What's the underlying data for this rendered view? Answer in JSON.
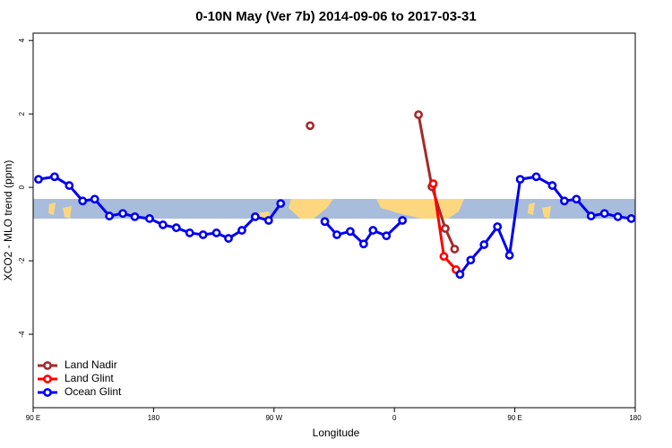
{
  "chart_data": {
    "type": "line",
    "title": "0-10N May (Ver 7b)   2014-09-06 to 2017-03-31",
    "x_label": "Longitude",
    "y_label": "XCO2 - MLO trend (ppm)",
    "xlim": [
      90,
      540
    ],
    "ylim": [
      -6,
      4.2
    ],
    "xticks": [
      {
        "value": 90,
        "label": "90 E"
      },
      180,
      {
        "value": 270,
        "label": "90 W"
      },
      {
        "value": 360,
        "label": "0"
      },
      {
        "value": 450,
        "label": "90 E"
      },
      {
        "value": 540,
        "label": "180"
      }
    ],
    "yticks": [
      -4,
      -2,
      0,
      2,
      4
    ],
    "legend": "bottom-left",
    "series": [
      {
        "name": "Land Nadir",
        "color": "#a52a2a",
        "x": [
          297,
          null,
          378,
          388,
          398,
          405
        ],
        "values": [
          1.68,
          null,
          1.98,
          0.02,
          -1.12,
          -1.68
        ]
      },
      {
        "name": "Land Glint",
        "color": "#ff0000",
        "x": [
          389,
          397,
          406
        ],
        "values": [
          0.1,
          -1.88,
          -2.24
        ]
      },
      {
        "name": "Ocean Glint",
        "color": "#0000ee",
        "x": [
          94,
          106,
          117,
          127,
          136,
          147,
          157,
          166,
          177,
          187,
          197,
          207,
          217,
          227,
          236,
          246,
          256,
          266,
          275,
          null,
          308,
          317,
          327,
          337,
          344,
          354,
          366,
          null,
          409,
          417,
          427,
          437,
          446,
          454,
          466,
          478,
          487,
          496,
          507,
          517,
          527,
          537
        ],
        "values": [
          0.22,
          0.29,
          0.05,
          -0.37,
          -0.32,
          -0.78,
          -0.71,
          -0.8,
          -0.85,
          -1.02,
          -1.1,
          -1.24,
          -1.29,
          -1.24,
          -1.39,
          -1.17,
          -0.8,
          -0.9,
          -0.44,
          null,
          -0.93,
          -1.29,
          -1.2,
          -1.54,
          -1.17,
          -1.32,
          -0.9,
          null,
          -2.37,
          -1.98,
          -1.56,
          -1.07,
          -1.85,
          0.22,
          0.29,
          0.05,
          -0.37,
          -0.32,
          -0.78,
          -0.71,
          -0.8,
          -0.85
        ]
      }
    ]
  }
}
